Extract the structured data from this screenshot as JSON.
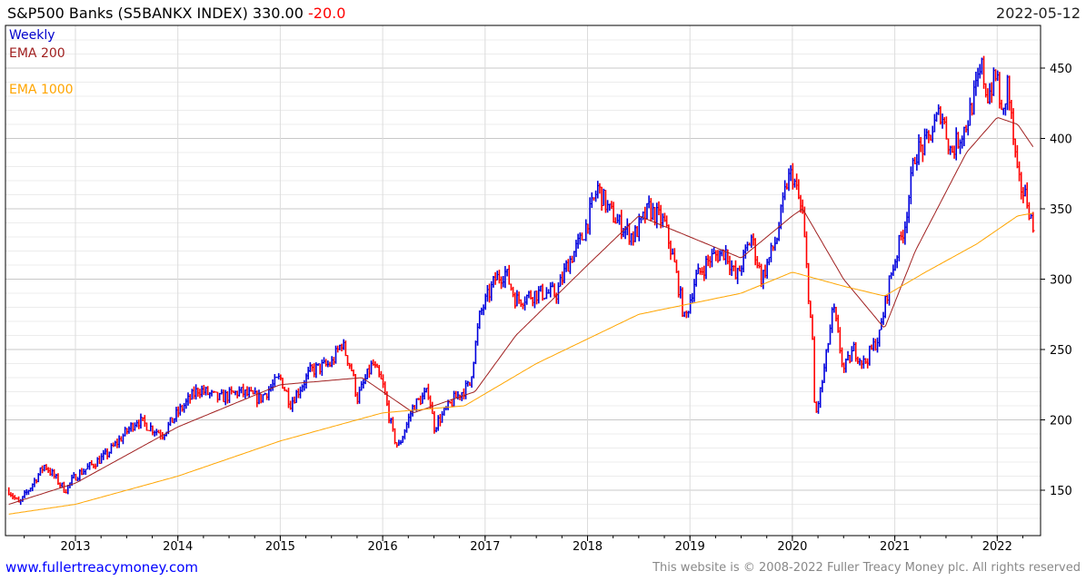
{
  "header": {
    "title": "S&P500 Banks  (S5BANKX INDEX) 330.00",
    "change": "-20.0",
    "date": "2022-05-12"
  },
  "legend": {
    "period": "Weekly",
    "ema200": "EMA 200",
    "ema1000": "EMA 1000"
  },
  "footer": {
    "left": "www.fullertreacymoney.com",
    "right": "This website is © 2008-2022 Fuller Treacy Money plc. All rights reserved"
  },
  "colors": {
    "up": "#0000dd",
    "down": "#ff0000",
    "ema200": "#a02020",
    "ema1000": "#ffa500"
  },
  "chart_data": {
    "type": "line",
    "title": "S&P500 Banks (S5BANKX INDEX)",
    "xlabel": "",
    "ylabel": "",
    "xlim": [
      2012.33,
      2022.43
    ],
    "ylim": [
      118,
      480
    ],
    "x_ticks": [
      "2013",
      "2014",
      "2015",
      "2016",
      "2017",
      "2018",
      "2019",
      "2020",
      "2021",
      "2022"
    ],
    "y_ticks": [
      150,
      200,
      250,
      300,
      350,
      400,
      450
    ],
    "grid": true,
    "legend_position": "top-left",
    "series": [
      {
        "name": "Weekly",
        "kind": "ohlc-approx",
        "points": [
          [
            2012.35,
            150
          ],
          [
            2012.45,
            140
          ],
          [
            2012.7,
            168
          ],
          [
            2012.9,
            150
          ],
          [
            2013.0,
            160
          ],
          [
            2013.3,
            175
          ],
          [
            2013.6,
            200
          ],
          [
            2013.85,
            190
          ],
          [
            2014.0,
            205
          ],
          [
            2014.2,
            222
          ],
          [
            2014.4,
            215
          ],
          [
            2014.6,
            220
          ],
          [
            2014.8,
            215
          ],
          [
            2015.0,
            230
          ],
          [
            2015.1,
            212
          ],
          [
            2015.3,
            235
          ],
          [
            2015.5,
            240
          ],
          [
            2015.6,
            255
          ],
          [
            2015.7,
            235
          ],
          [
            2015.75,
            215
          ],
          [
            2015.9,
            240
          ],
          [
            2016.0,
            225
          ],
          [
            2016.1,
            190
          ],
          [
            2016.15,
            180
          ],
          [
            2016.3,
            210
          ],
          [
            2016.45,
            220
          ],
          [
            2016.5,
            195
          ],
          [
            2016.7,
            215
          ],
          [
            2016.85,
            225
          ],
          [
            2016.95,
            275
          ],
          [
            2017.1,
            300
          ],
          [
            2017.2,
            305
          ],
          [
            2017.3,
            285
          ],
          [
            2017.5,
            290
          ],
          [
            2017.7,
            290
          ],
          [
            2017.8,
            310
          ],
          [
            2017.95,
            330
          ],
          [
            2018.1,
            365
          ],
          [
            2018.2,
            350
          ],
          [
            2018.3,
            340
          ],
          [
            2018.45,
            330
          ],
          [
            2018.6,
            350
          ],
          [
            2018.75,
            340
          ],
          [
            2018.85,
            310
          ],
          [
            2018.95,
            270
          ],
          [
            2019.05,
            300
          ],
          [
            2019.2,
            315
          ],
          [
            2019.35,
            320
          ],
          [
            2019.45,
            300
          ],
          [
            2019.6,
            330
          ],
          [
            2019.7,
            300
          ],
          [
            2019.85,
            330
          ],
          [
            2019.95,
            370
          ],
          [
            2020.0,
            375
          ],
          [
            2020.1,
            345
          ],
          [
            2020.2,
            250
          ],
          [
            2020.22,
            200
          ],
          [
            2020.3,
            230
          ],
          [
            2020.4,
            280
          ],
          [
            2020.5,
            235
          ],
          [
            2020.6,
            250
          ],
          [
            2020.7,
            240
          ],
          [
            2020.85,
            260
          ],
          [
            2020.95,
            300
          ],
          [
            2021.1,
            340
          ],
          [
            2021.2,
            390
          ],
          [
            2021.3,
            395
          ],
          [
            2021.45,
            420
          ],
          [
            2021.55,
            390
          ],
          [
            2021.7,
            410
          ],
          [
            2021.85,
            450
          ],
          [
            2021.9,
            430
          ],
          [
            2022.0,
            445
          ],
          [
            2022.05,
            410
          ],
          [
            2022.1,
            440
          ],
          [
            2022.2,
            370
          ],
          [
            2022.3,
            355
          ],
          [
            2022.36,
            330
          ]
        ]
      },
      {
        "name": "EMA 200",
        "points": [
          [
            2012.35,
            140
          ],
          [
            2013.0,
            155
          ],
          [
            2014.0,
            195
          ],
          [
            2015.0,
            225
          ],
          [
            2015.8,
            230
          ],
          [
            2016.3,
            205
          ],
          [
            2016.9,
            220
          ],
          [
            2017.3,
            260
          ],
          [
            2018.0,
            310
          ],
          [
            2018.5,
            345
          ],
          [
            2019.0,
            330
          ],
          [
            2019.5,
            315
          ],
          [
            2020.0,
            345
          ],
          [
            2020.1,
            350
          ],
          [
            2020.5,
            300
          ],
          [
            2020.9,
            265
          ],
          [
            2021.2,
            320
          ],
          [
            2021.7,
            390
          ],
          [
            2022.0,
            415
          ],
          [
            2022.2,
            410
          ],
          [
            2022.36,
            393
          ]
        ]
      },
      {
        "name": "EMA 1000",
        "points": [
          [
            2012.35,
            133
          ],
          [
            2013.0,
            140
          ],
          [
            2014.0,
            160
          ],
          [
            2015.0,
            185
          ],
          [
            2016.0,
            205
          ],
          [
            2016.8,
            210
          ],
          [
            2017.5,
            240
          ],
          [
            2018.5,
            275
          ],
          [
            2019.5,
            290
          ],
          [
            2020.0,
            305
          ],
          [
            2020.5,
            295
          ],
          [
            2020.9,
            288
          ],
          [
            2021.3,
            305
          ],
          [
            2021.8,
            325
          ],
          [
            2022.2,
            345
          ],
          [
            2022.36,
            347
          ]
        ]
      }
    ]
  }
}
